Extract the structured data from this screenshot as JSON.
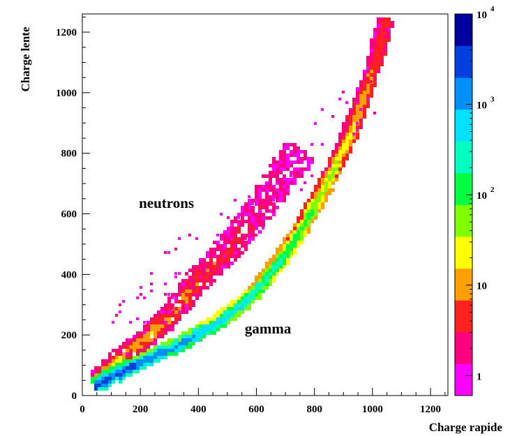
{
  "chart_data": {
    "type": "heatmap",
    "xlabel": "Charge rapide",
    "ylabel": "Charge lente",
    "xlim": [
      0,
      1260
    ],
    "ylim": [
      0,
      1260
    ],
    "x_ticks": [
      0,
      200,
      400,
      600,
      800,
      1000,
      1200
    ],
    "y_ticks": [
      0,
      200,
      400,
      600,
      800,
      1000,
      1200
    ],
    "x_tick_labels": [
      "0",
      "200",
      "400",
      "600",
      "800",
      "1000",
      "1200"
    ],
    "y_tick_labels": [
      "0",
      "200",
      "400",
      "600",
      "800",
      "1000",
      "1200"
    ],
    "annotations": [
      {
        "text": "neutrons",
        "x": 290,
        "y": 620
      },
      {
        "text": "gamma",
        "x": 640,
        "y": 205
      }
    ],
    "colorbar": {
      "scale": "log",
      "range": [
        0.6,
        10000
      ],
      "ticks": [
        {
          "value": 1,
          "label": "1"
        },
        {
          "value": 10,
          "label": "10"
        },
        {
          "value": 100,
          "label": "10",
          "sup": "2"
        },
        {
          "value": 1000,
          "label": "10",
          "sup": "3"
        },
        {
          "value": 10000,
          "label": "10",
          "sup": "4"
        }
      ],
      "colors": [
        "#ff00ff",
        "#ff0080",
        "#ff2020",
        "#ffa000",
        "#ffff00",
        "#80ff00",
        "#00ff40",
        "#00ffc0",
        "#00e0ff",
        "#0090ff",
        "#0040e0",
        "#0000a0"
      ]
    },
    "series": [
      {
        "name": "gamma",
        "points": [
          [
            40,
            38
          ],
          [
            80,
            60
          ],
          [
            150,
            95
          ],
          [
            200,
            115
          ],
          [
            250,
            140
          ],
          [
            300,
            160
          ],
          [
            350,
            185
          ],
          [
            400,
            215
          ],
          [
            450,
            240
          ],
          [
            500,
            275
          ],
          [
            550,
            310
          ],
          [
            600,
            360
          ],
          [
            650,
            420
          ],
          [
            700,
            480
          ],
          [
            750,
            560
          ],
          [
            800,
            640
          ],
          [
            850,
            730
          ],
          [
            900,
            830
          ],
          [
            950,
            950
          ],
          [
            1000,
            1090
          ],
          [
            1030,
            1200
          ],
          [
            1045,
            1250
          ]
        ],
        "peak_counts": 3000
      },
      {
        "name": "neutrons",
        "points": [
          [
            40,
            55
          ],
          [
            80,
            90
          ],
          [
            120,
            125
          ],
          [
            150,
            150
          ],
          [
            200,
            185
          ],
          [
            250,
            225
          ],
          [
            300,
            270
          ],
          [
            350,
            330
          ],
          [
            400,
            390
          ],
          [
            450,
            440
          ],
          [
            500,
            490
          ],
          [
            550,
            550
          ],
          [
            600,
            610
          ],
          [
            650,
            680
          ],
          [
            700,
            750
          ],
          [
            750,
            820
          ]
        ],
        "peak_counts": 40
      }
    ]
  }
}
